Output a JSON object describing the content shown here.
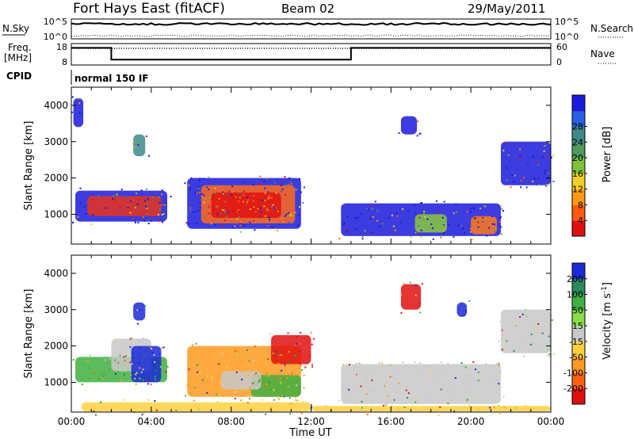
{
  "header": {
    "station": "Fort Hays East (fitACF)",
    "beam": "Beam 02",
    "date": "29/May/2011"
  },
  "noise_panel": {
    "left_label": "N.Sky",
    "right_label": "N.Search",
    "left_ticks": [
      "10^5",
      "10^0"
    ],
    "right_ticks": [
      "10^5",
      "10^0"
    ]
  },
  "freq_panel": {
    "left_label_line1": "Freq.",
    "left_label_line2": "[MHz]",
    "right_label": "Nave",
    "left_ticks": [
      "18",
      "8"
    ],
    "right_ticks": [
      "60",
      "0"
    ],
    "freq_series": [
      {
        "t": 0,
        "v": 16
      },
      {
        "t": 2,
        "v": 16
      },
      {
        "t": 2,
        "v": 10.5
      },
      {
        "t": 14,
        "v": 10.5
      },
      {
        "t": 14,
        "v": 16
      },
      {
        "t": 24,
        "v": 16
      }
    ]
  },
  "cpid": {
    "label": "CPID",
    "mode": "normal 150 IF"
  },
  "chart_data": [
    {
      "type": "heatmap",
      "ylabel": "Slant Range [km]",
      "xlabel": "Time UT",
      "x_ticks": [
        "00:00",
        "04:00",
        "08:00",
        "12:00",
        "16:00",
        "20:00",
        "00:00"
      ],
      "y_ticks": [
        "1000",
        "2000",
        "3000",
        "4000"
      ],
      "xlim": [
        0,
        24
      ],
      "ylim": [
        180,
        4500
      ],
      "colorbar": {
        "label": "Power [dB]",
        "ticks": [
          "4",
          "8",
          "12",
          "16",
          "20",
          "24",
          "28"
        ],
        "colors": [
          "#1a1adc",
          "#2a5fe0",
          "#3d8a8a",
          "#4e9a60",
          "#7fc23a",
          "#f0d020",
          "#ff9a10",
          "#ff5a10",
          "#e01010"
        ]
      },
      "regions": [
        {
          "t0": 0.2,
          "t1": 4.8,
          "r0": 800,
          "r1": 1650,
          "fill": "#1a1adc"
        },
        {
          "t0": 0.8,
          "t1": 4.5,
          "r0": 950,
          "r1": 1500,
          "fill": "#e8331a"
        },
        {
          "t0": 5.8,
          "t1": 11.5,
          "r0": 600,
          "r1": 2000,
          "fill": "#1a1adc"
        },
        {
          "t0": 6.5,
          "t1": 11.2,
          "r0": 750,
          "r1": 1800,
          "fill": "#ff6a1a"
        },
        {
          "t0": 7.0,
          "t1": 10.5,
          "r0": 900,
          "r1": 1600,
          "fill": "#e01010"
        },
        {
          "t0": 13.5,
          "t1": 21.5,
          "r0": 400,
          "r1": 1300,
          "fill": "#1a1adc"
        },
        {
          "t0": 17.2,
          "t1": 18.8,
          "r0": 500,
          "r1": 1000,
          "fill": "#8ac83a"
        },
        {
          "t0": 20.0,
          "t1": 21.3,
          "r0": 450,
          "r1": 950,
          "fill": "#ff7a1a"
        },
        {
          "t0": 21.5,
          "t1": 24.0,
          "r0": 1800,
          "r1": 3000,
          "fill": "#1a1adc"
        },
        {
          "t0": 0.1,
          "t1": 0.6,
          "r0": 3400,
          "r1": 4200,
          "fill": "#1a1adc"
        },
        {
          "t0": 3.1,
          "t1": 3.7,
          "r0": 2600,
          "r1": 3200,
          "fill": "#3d8a8a"
        },
        {
          "t0": 16.5,
          "t1": 17.3,
          "r0": 3200,
          "r1": 3700,
          "fill": "#1a1adc"
        }
      ]
    },
    {
      "type": "heatmap",
      "ylabel": "Slant Range [km]",
      "xlabel": "Time UT",
      "x_ticks": [
        "00:00",
        "04:00",
        "08:00",
        "12:00",
        "16:00",
        "20:00",
        "00:00"
      ],
      "y_ticks": [
        "1000",
        "2000",
        "3000",
        "4000"
      ],
      "xlim": [
        0,
        24
      ],
      "ylim": [
        180,
        4500
      ],
      "colorbar": {
        "label": "Velocity [m s",
        "label_sup": "-1",
        "label_end": "]",
        "ticks": [
          "200",
          "100",
          "50",
          "15",
          "-15",
          "-50",
          "-100",
          "-200"
        ],
        "colors": [
          "#1a2ad8",
          "#2a8a5a",
          "#40b040",
          "#8adc4a",
          "#c8c8c8",
          "#ffd040",
          "#ff9a20",
          "#ff6010",
          "#e01010"
        ]
      },
      "regions": [
        {
          "t0": 0.2,
          "t1": 4.8,
          "r0": 1000,
          "r1": 1700,
          "fill": "#40b040"
        },
        {
          "t0": 2.0,
          "t1": 4.0,
          "r0": 1300,
          "r1": 2200,
          "fill": "#c8c8c8"
        },
        {
          "t0": 3.0,
          "t1": 4.5,
          "r0": 1000,
          "r1": 2000,
          "fill": "#1a2ad8"
        },
        {
          "t0": 5.8,
          "t1": 11.5,
          "r0": 600,
          "r1": 2000,
          "fill": "#ff9a20"
        },
        {
          "t0": 9.0,
          "t1": 11.5,
          "r0": 600,
          "r1": 1200,
          "fill": "#40b040"
        },
        {
          "t0": 7.5,
          "t1": 9.5,
          "r0": 800,
          "r1": 1300,
          "fill": "#c8c8c8"
        },
        {
          "t0": 10.0,
          "t1": 12.0,
          "r0": 1500,
          "r1": 2300,
          "fill": "#e01010"
        },
        {
          "t0": 13.5,
          "t1": 21.5,
          "r0": 400,
          "r1": 1500,
          "fill": "#c8c8c8"
        },
        {
          "t0": 0.5,
          "t1": 12.0,
          "r0": 200,
          "r1": 450,
          "fill": "#ffd040"
        },
        {
          "t0": 12.0,
          "t1": 24.0,
          "r0": 200,
          "r1": 350,
          "fill": "#ffd040"
        },
        {
          "t0": 21.5,
          "t1": 24.0,
          "r0": 1800,
          "r1": 3000,
          "fill": "#c8c8c8"
        },
        {
          "t0": 16.5,
          "t1": 17.5,
          "r0": 3000,
          "r1": 3700,
          "fill": "#e01010"
        },
        {
          "t0": 19.3,
          "t1": 19.8,
          "r0": 2800,
          "r1": 3200,
          "fill": "#1a2ad8"
        },
        {
          "t0": 3.1,
          "t1": 3.7,
          "r0": 2700,
          "r1": 3200,
          "fill": "#1a2ad8"
        }
      ]
    }
  ]
}
